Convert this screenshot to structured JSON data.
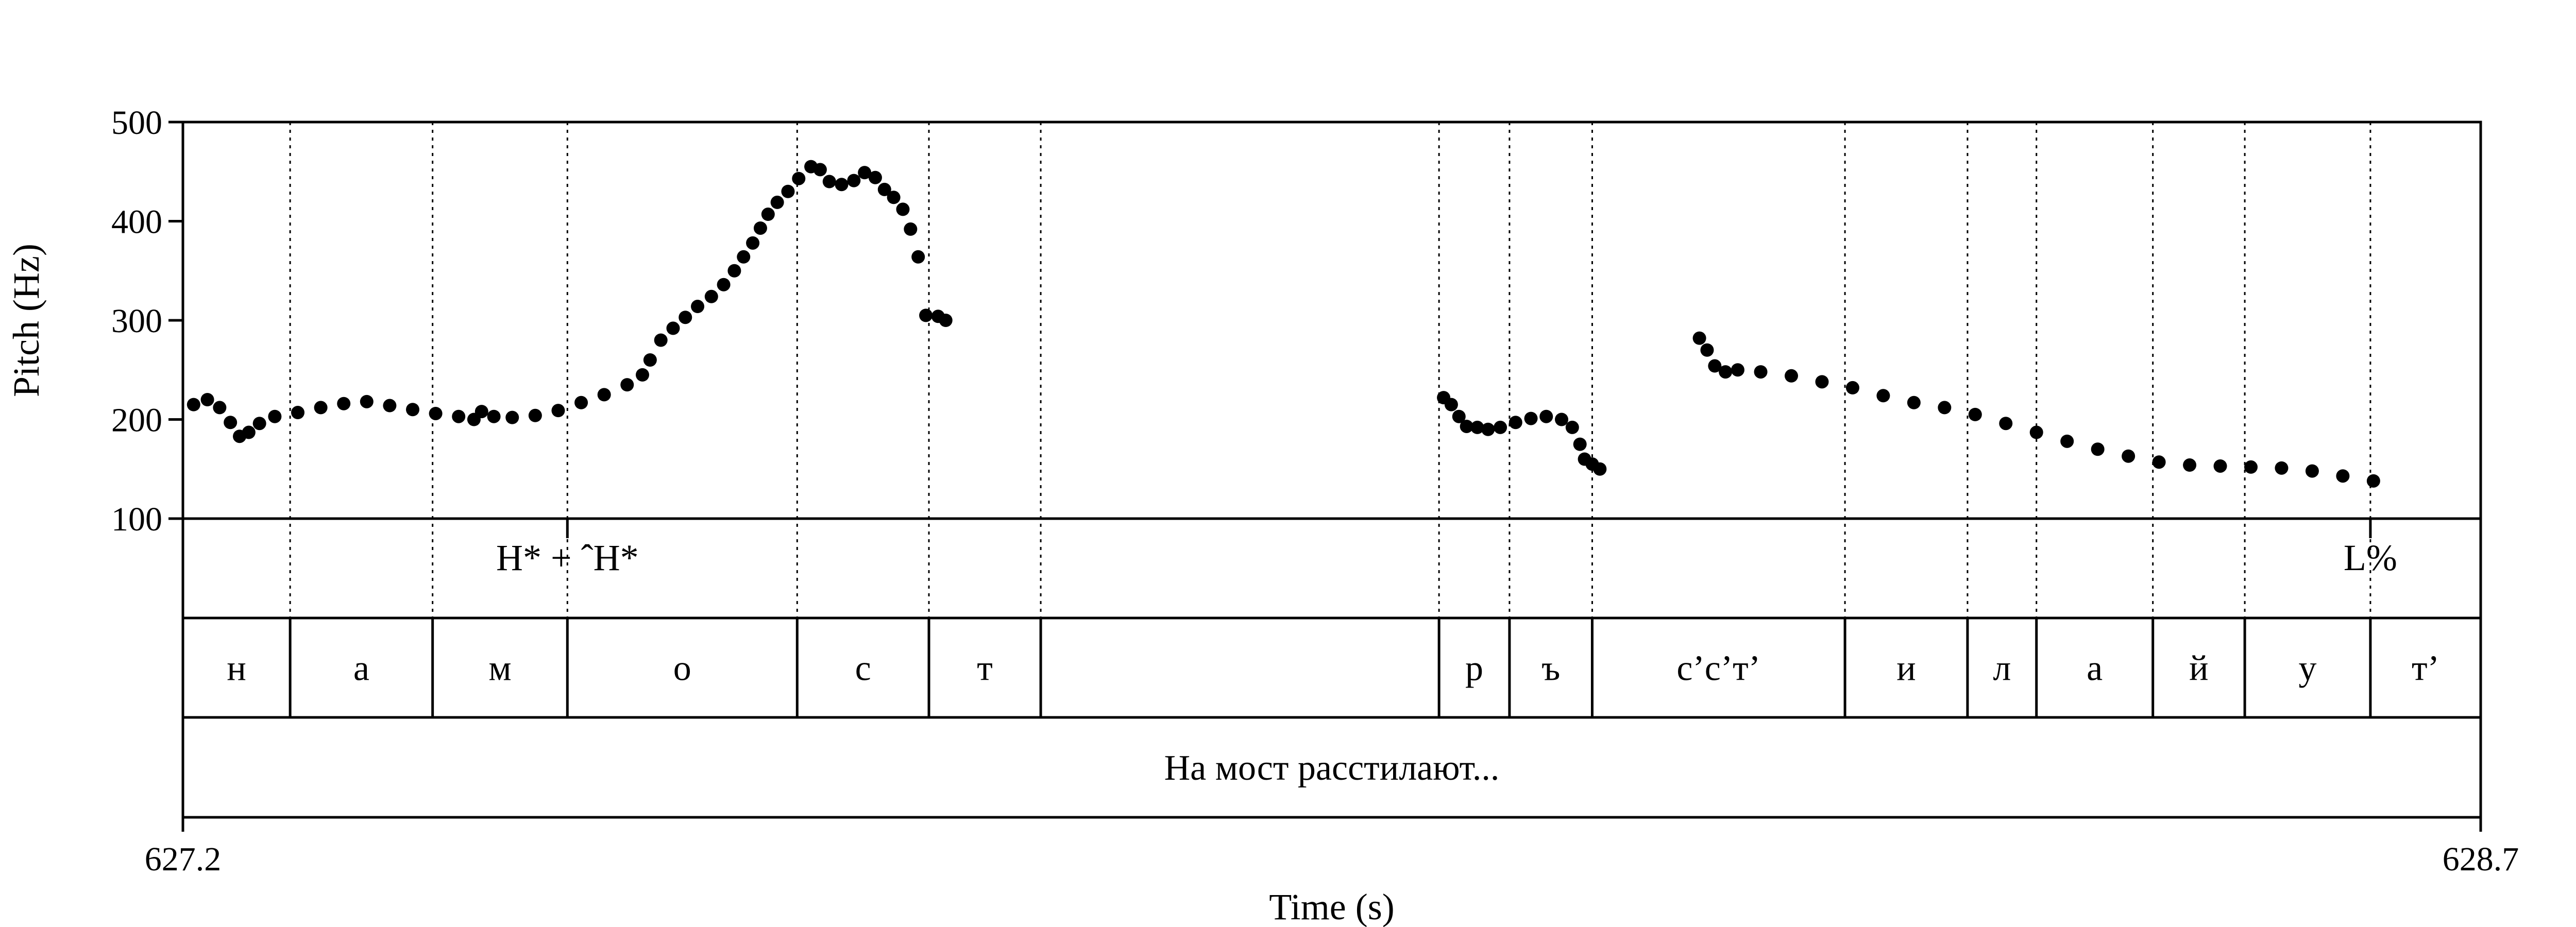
{
  "chart_data": {
    "type": "scatter",
    "title": "",
    "xlabel": "Time (s)",
    "ylabel": "Pitch (Hz)",
    "xlim": [
      627.2,
      628.7
    ],
    "ylim": [
      100,
      500
    ],
    "x_ticks": [
      "627.2",
      "628.7"
    ],
    "y_ticks": [
      "100",
      "200",
      "300",
      "400",
      "500"
    ],
    "grid": false,
    "pitch_points": [
      [
        627.207,
        215
      ],
      [
        627.216,
        220
      ],
      [
        627.224,
        212
      ],
      [
        627.231,
        197
      ],
      [
        627.237,
        183
      ],
      [
        627.243,
        187
      ],
      [
        627.25,
        196
      ],
      [
        627.26,
        203
      ],
      [
        627.275,
        207
      ],
      [
        627.29,
        212
      ],
      [
        627.305,
        216
      ],
      [
        627.32,
        218
      ],
      [
        627.335,
        214
      ],
      [
        627.35,
        210
      ],
      [
        627.365,
        206
      ],
      [
        627.38,
        203
      ],
      [
        627.39,
        200
      ],
      [
        627.395,
        208
      ],
      [
        627.403,
        203
      ],
      [
        627.415,
        202
      ],
      [
        627.43,
        204
      ],
      [
        627.445,
        209
      ],
      [
        627.46,
        217
      ],
      [
        627.475,
        225
      ],
      [
        627.49,
        235
      ],
      [
        627.5,
        245
      ],
      [
        627.505,
        260
      ],
      [
        627.512,
        280
      ],
      [
        627.52,
        292
      ],
      [
        627.528,
        303
      ],
      [
        627.536,
        314
      ],
      [
        627.545,
        324
      ],
      [
        627.553,
        336
      ],
      [
        627.56,
        350
      ],
      [
        627.566,
        364
      ],
      [
        627.572,
        378
      ],
      [
        627.577,
        393
      ],
      [
        627.582,
        407
      ],
      [
        627.588,
        419
      ],
      [
        627.595,
        430
      ],
      [
        627.602,
        443
      ],
      [
        627.61,
        455
      ],
      [
        627.616,
        452
      ],
      [
        627.622,
        440
      ],
      [
        627.63,
        437
      ],
      [
        627.638,
        441
      ],
      [
        627.645,
        449
      ],
      [
        627.652,
        444
      ],
      [
        627.658,
        432
      ],
      [
        627.664,
        424
      ],
      [
        627.67,
        412
      ],
      [
        627.675,
        392
      ],
      [
        627.68,
        364
      ],
      [
        627.685,
        305
      ],
      [
        627.693,
        304
      ],
      [
        627.698,
        300
      ],
      [
        628.023,
        222
      ],
      [
        628.028,
        215
      ],
      [
        628.033,
        203
      ],
      [
        628.038,
        193
      ],
      [
        628.045,
        192
      ],
      [
        628.052,
        190
      ],
      [
        628.06,
        192
      ],
      [
        628.07,
        197
      ],
      [
        628.08,
        201
      ],
      [
        628.09,
        203
      ],
      [
        628.1,
        200
      ],
      [
        628.107,
        192
      ],
      [
        628.112,
        175
      ],
      [
        628.115,
        160
      ],
      [
        628.12,
        155
      ],
      [
        628.125,
        150
      ],
      [
        628.19,
        282
      ],
      [
        628.195,
        270
      ],
      [
        628.2,
        254
      ],
      [
        628.207,
        248
      ],
      [
        628.215,
        250
      ],
      [
        628.23,
        248
      ],
      [
        628.25,
        244
      ],
      [
        628.27,
        238
      ],
      [
        628.29,
        232
      ],
      [
        628.31,
        224
      ],
      [
        628.33,
        217
      ],
      [
        628.35,
        212
      ],
      [
        628.37,
        205
      ],
      [
        628.39,
        196
      ],
      [
        628.41,
        187
      ],
      [
        628.43,
        178
      ],
      [
        628.45,
        170
      ],
      [
        628.47,
        163
      ],
      [
        628.49,
        157
      ],
      [
        628.51,
        154
      ],
      [
        628.53,
        153
      ],
      [
        628.55,
        152
      ],
      [
        628.57,
        151
      ],
      [
        628.59,
        148
      ],
      [
        628.61,
        143
      ],
      [
        628.63,
        138
      ]
    ],
    "tone_tier": [
      {
        "t": 627.451,
        "label": "H* + ˆH*"
      },
      {
        "t": 628.628,
        "label": "L%"
      }
    ],
    "segment_tier": [
      {
        "start": 627.2,
        "end": 627.27,
        "label": "н"
      },
      {
        "start": 627.27,
        "end": 627.363,
        "label": "а"
      },
      {
        "start": 627.363,
        "end": 627.451,
        "label": "м"
      },
      {
        "start": 627.451,
        "end": 627.601,
        "label": "о"
      },
      {
        "start": 627.601,
        "end": 627.687,
        "label": "с"
      },
      {
        "start": 627.687,
        "end": 627.76,
        "label": "т"
      },
      {
        "start": 627.76,
        "end": 628.02,
        "label": ""
      },
      {
        "start": 628.02,
        "end": 628.066,
        "label": "р"
      },
      {
        "start": 628.066,
        "end": 628.12,
        "label": "ъ"
      },
      {
        "start": 628.12,
        "end": 628.285,
        "label": "с’с’т’"
      },
      {
        "start": 628.285,
        "end": 628.365,
        "label": "и"
      },
      {
        "start": 628.365,
        "end": 628.41,
        "label": "л"
      },
      {
        "start": 628.41,
        "end": 628.486,
        "label": "а"
      },
      {
        "start": 628.486,
        "end": 628.546,
        "label": "й"
      },
      {
        "start": 628.546,
        "end": 628.628,
        "label": "у"
      },
      {
        "start": 628.628,
        "end": 628.7,
        "label": "т’"
      }
    ],
    "word_tier": [
      {
        "start": 627.2,
        "end": 628.7,
        "label": "На мост расстилают..."
      }
    ]
  }
}
